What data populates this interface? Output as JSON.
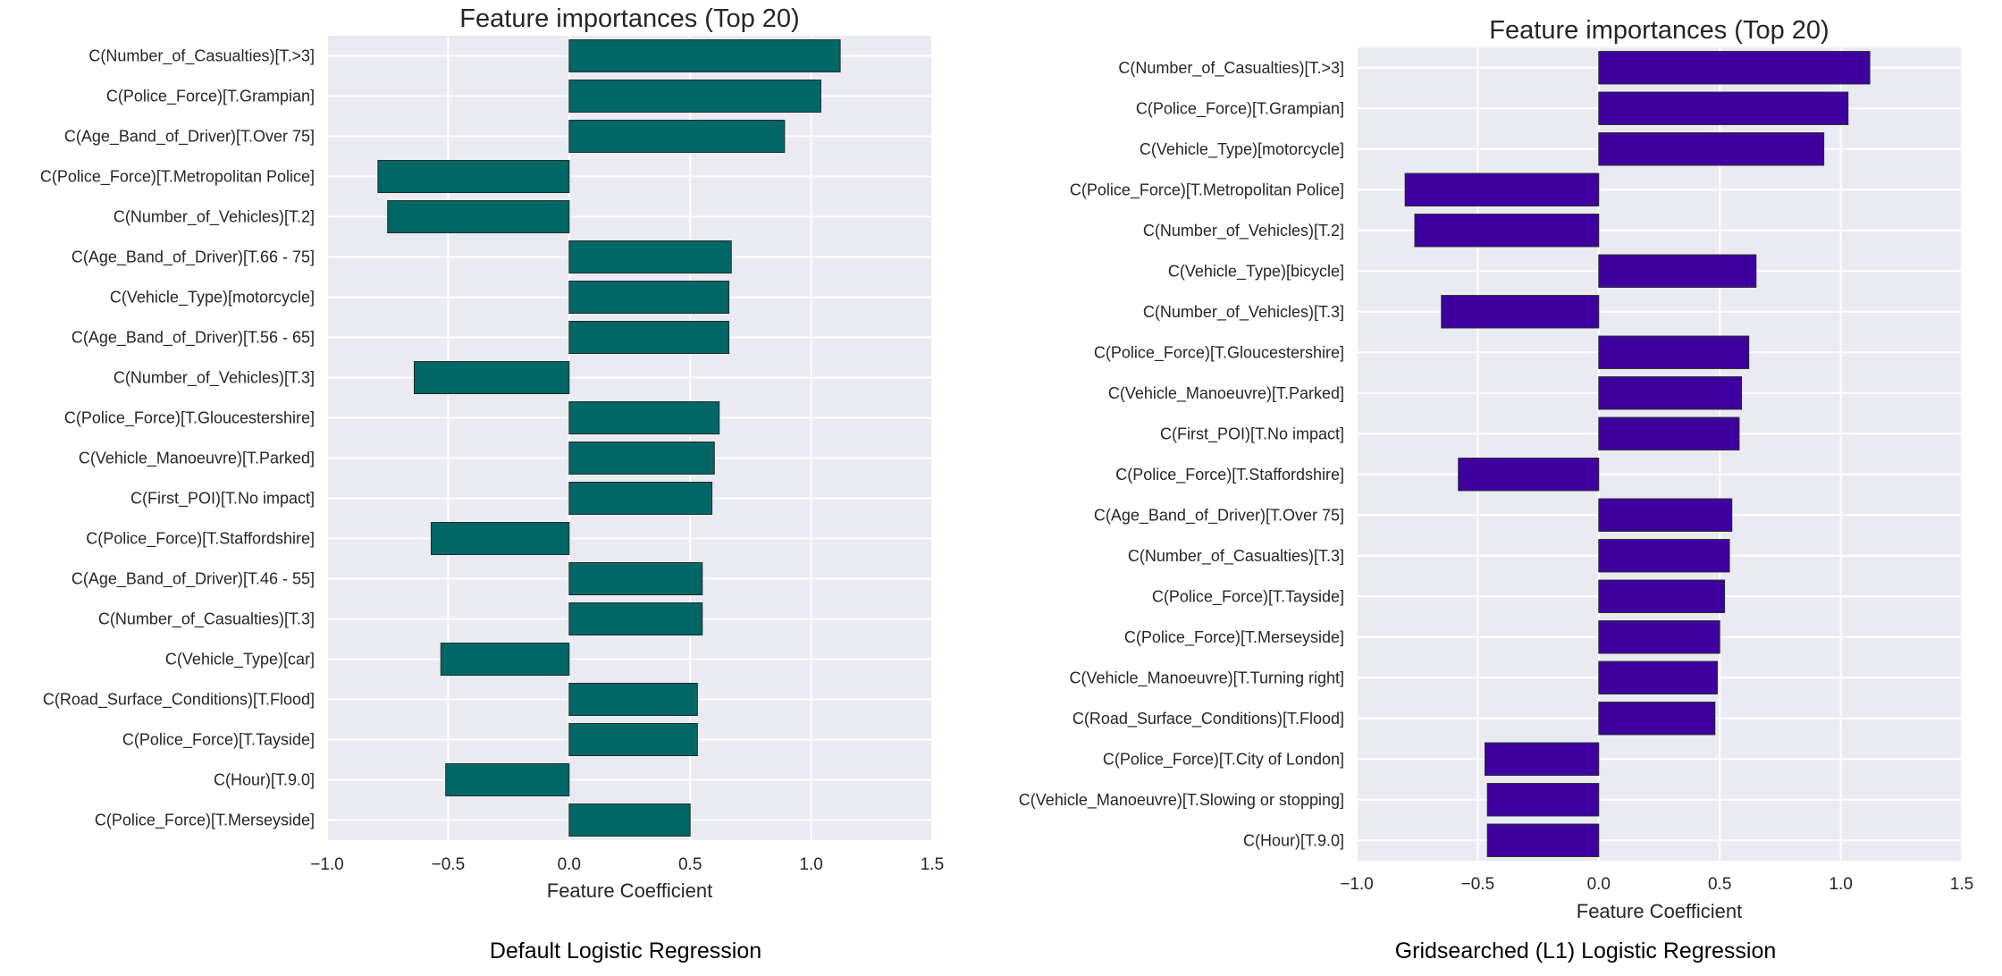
{
  "captions": {
    "left": "Default Logistic Regression",
    "right": "Gridsearched (L1) Logistic Regression"
  },
  "chart_data": [
    {
      "type": "bar",
      "orientation": "horizontal",
      "title": "Feature importances (Top 20)",
      "xlabel": "Feature Coefficient",
      "ylabel": "",
      "xlim": [
        -1.0,
        1.5
      ],
      "xticks": [
        -1.0,
        -0.5,
        0.0,
        0.5,
        1.0,
        1.5
      ],
      "xtick_labels": [
        "−1.0",
        "−0.5",
        "0.0",
        "0.5",
        "1.0",
        "1.5"
      ],
      "grid": true,
      "bar_color": "#006666",
      "background": "#eaeaf2",
      "categories": [
        "C(Number_of_Casualties)[T.>3]",
        "C(Police_Force)[T.Grampian]",
        "C(Age_Band_of_Driver)[T.Over 75]",
        "C(Police_Force)[T.Metropolitan Police]",
        "C(Number_of_Vehicles)[T.2]",
        "C(Age_Band_of_Driver)[T.66 - 75]",
        "C(Vehicle_Type)[motorcycle]",
        "C(Age_Band_of_Driver)[T.56 - 65]",
        "C(Number_of_Vehicles)[T.3]",
        "C(Police_Force)[T.Gloucestershire]",
        "C(Vehicle_Manoeuvre)[T.Parked]",
        "C(First_POI)[T.No impact]",
        "C(Police_Force)[T.Staffordshire]",
        "C(Age_Band_of_Driver)[T.46 - 55]",
        "C(Number_of_Casualties)[T.3]",
        "C(Vehicle_Type)[car]",
        "C(Road_Surface_Conditions)[T.Flood]",
        "C(Police_Force)[T.Tayside]",
        "C(Hour)[T.9.0]",
        "C(Police_Force)[T.Merseyside]"
      ],
      "values": [
        1.12,
        1.04,
        0.89,
        -0.79,
        -0.75,
        0.67,
        0.66,
        0.66,
        -0.64,
        0.62,
        0.6,
        0.59,
        -0.57,
        0.55,
        0.55,
        -0.53,
        0.53,
        0.53,
        -0.51,
        0.5
      ]
    },
    {
      "type": "bar",
      "orientation": "horizontal",
      "title": "Feature importances (Top 20)",
      "xlabel": "Feature Coefficient",
      "ylabel": "",
      "xlim": [
        -1.0,
        1.5
      ],
      "xticks": [
        -1.0,
        -0.5,
        0.0,
        0.5,
        1.0,
        1.5
      ],
      "xtick_labels": [
        "−1.0",
        "−0.5",
        "0.0",
        "0.5",
        "1.0",
        "1.5"
      ],
      "grid": true,
      "bar_color": "#3f00a0",
      "background": "#eaeaf2",
      "categories": [
        "C(Number_of_Casualties)[T.>3]",
        "C(Police_Force)[T.Grampian]",
        "C(Vehicle_Type)[motorcycle]",
        "C(Police_Force)[T.Metropolitan Police]",
        "C(Number_of_Vehicles)[T.2]",
        "C(Vehicle_Type)[bicycle]",
        "C(Number_of_Vehicles)[T.3]",
        "C(Police_Force)[T.Gloucestershire]",
        "C(Vehicle_Manoeuvre)[T.Parked]",
        "C(First_POI)[T.No impact]",
        "C(Police_Force)[T.Staffordshire]",
        "C(Age_Band_of_Driver)[T.Over 75]",
        "C(Number_of_Casualties)[T.3]",
        "C(Police_Force)[T.Tayside]",
        "C(Police_Force)[T.Merseyside]",
        "C(Vehicle_Manoeuvre)[T.Turning right]",
        "C(Road_Surface_Conditions)[T.Flood]",
        "C(Police_Force)[T.City of London]",
        "C(Vehicle_Manoeuvre)[T.Slowing or stopping]",
        "C(Hour)[T.9.0]"
      ],
      "values": [
        1.12,
        1.03,
        0.93,
        -0.8,
        -0.76,
        0.65,
        -0.65,
        0.62,
        0.59,
        0.58,
        -0.58,
        0.55,
        0.54,
        0.52,
        0.5,
        0.49,
        0.48,
        -0.47,
        -0.46,
        -0.46
      ]
    }
  ]
}
